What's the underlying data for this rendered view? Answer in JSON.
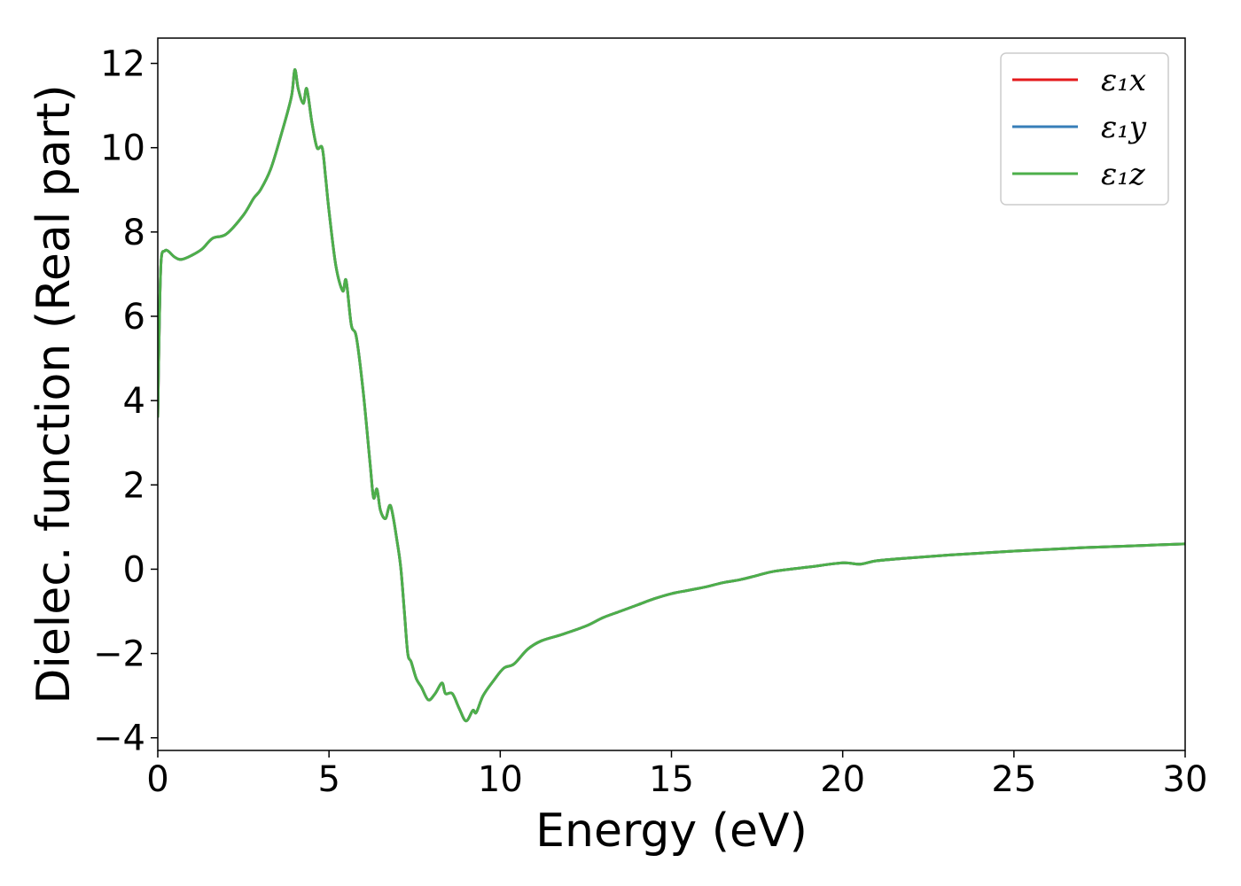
{
  "chart_data": {
    "type": "line",
    "title": "",
    "xlabel": "Energy (eV)",
    "ylabel": "Dielec. function (Real part)",
    "xlim": [
      0,
      30
    ],
    "ylim": [
      -4.3,
      12.6
    ],
    "xticks": [
      0,
      5,
      10,
      15,
      20,
      25,
      30
    ],
    "xtick_labels": [
      "0",
      "5",
      "10",
      "15",
      "20",
      "25",
      "30"
    ],
    "yticks": [
      -4,
      -2,
      0,
      2,
      4,
      6,
      8,
      10,
      12
    ],
    "ytick_labels": [
      "−4",
      "−2",
      "0",
      "2",
      "4",
      "6",
      "8",
      "10",
      "12"
    ],
    "grid": false,
    "legend": {
      "placement": "top-right"
    },
    "series": [
      {
        "name": "ε₁x",
        "color": "#e41a1c"
      },
      {
        "name": "ε₁y",
        "color": "#377eb8"
      },
      {
        "name": "ε₁z",
        "color": "#4daf4a"
      }
    ],
    "x": [
      0,
      0.05,
      0.1,
      0.2,
      0.3,
      0.5,
      0.7,
      1.0,
      1.3,
      1.6,
      2.0,
      2.5,
      2.8,
      3.0,
      3.3,
      3.6,
      3.9,
      4.0,
      4.1,
      4.25,
      4.35,
      4.5,
      4.65,
      4.8,
      4.9,
      5.0,
      5.2,
      5.4,
      5.5,
      5.65,
      5.8,
      6.0,
      6.2,
      6.3,
      6.4,
      6.5,
      6.65,
      6.8,
      7.0,
      7.1,
      7.2,
      7.3,
      7.4,
      7.55,
      7.7,
      7.9,
      8.1,
      8.3,
      8.4,
      8.6,
      8.8,
      9.0,
      9.2,
      9.3,
      9.5,
      9.8,
      10.1,
      10.4,
      10.8,
      11.2,
      11.8,
      12.5,
      13.0,
      13.5,
      14.0,
      14.5,
      15.0,
      15.5,
      16.0,
      16.5,
      17.0,
      17.5,
      18.0,
      19.0,
      20.0,
      20.5,
      21.0,
      22.0,
      23.0,
      24.0,
      25.0,
      26.0,
      27.0,
      28.0,
      29.0,
      30.0
    ],
    "values": [
      3.6,
      6.0,
      7.35,
      7.55,
      7.55,
      7.4,
      7.35,
      7.45,
      7.6,
      7.85,
      7.95,
      8.4,
      8.8,
      9.0,
      9.5,
      10.3,
      11.2,
      11.85,
      11.4,
      11.05,
      11.4,
      10.6,
      10.0,
      10.0,
      9.3,
      8.5,
      7.2,
      6.6,
      6.85,
      5.8,
      5.5,
      4.2,
      2.5,
      1.7,
      1.9,
      1.4,
      1.2,
      1.5,
      0.6,
      0.0,
      -1.0,
      -2.0,
      -2.2,
      -2.6,
      -2.8,
      -3.1,
      -2.95,
      -2.7,
      -2.95,
      -2.95,
      -3.3,
      -3.6,
      -3.35,
      -3.4,
      -3.0,
      -2.65,
      -2.35,
      -2.25,
      -1.9,
      -1.7,
      -1.55,
      -1.35,
      -1.15,
      -1.0,
      -0.85,
      -0.7,
      -0.58,
      -0.5,
      -0.42,
      -0.32,
      -0.25,
      -0.15,
      -0.05,
      0.05,
      0.15,
      0.12,
      0.2,
      0.27,
      0.33,
      0.38,
      0.43,
      0.47,
      0.51,
      0.54,
      0.57,
      0.6
    ]
  }
}
